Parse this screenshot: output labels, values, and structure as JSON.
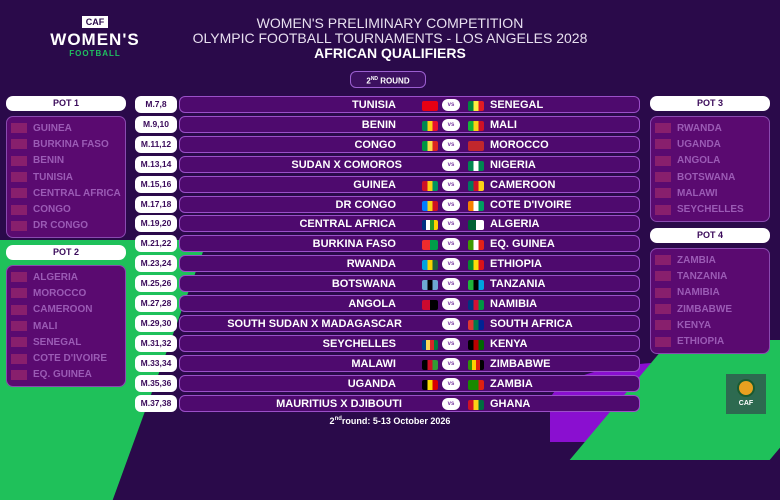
{
  "logo": {
    "caf": "CAF",
    "womens": "WOMEN'S",
    "football": "FOOTBALL"
  },
  "header": {
    "line1": "WOMEN'S PRELIMINARY COMPETITION",
    "line2": "OLYMPIC FOOTBALL TOURNAMENTS - LOS ANGELES 2028",
    "line3": "AFRICAN QUALIFIERS"
  },
  "round": {
    "num": "2",
    "sup": "ND",
    "label": "ROUND"
  },
  "pots": [
    {
      "title": "POT 1",
      "items": [
        "GUINEA",
        "BURKINA FASO",
        "BENIN",
        "TUNISIA",
        "CENTRAL AFRICA",
        "CONGO",
        "DR CONGO"
      ]
    },
    {
      "title": "POT 2",
      "items": [
        "ALGERIA",
        "MOROCCO",
        "CAMEROON",
        "MALI",
        "SENEGAL",
        "COTE D'IVOIRE",
        "EQ. GUINEA"
      ]
    },
    {
      "title": "POT 3",
      "items": [
        "RWANDA",
        "UGANDA",
        "ANGOLA",
        "BOTSWANA",
        "MALAWI",
        "SEYCHELLES"
      ]
    },
    {
      "title": "POT 4",
      "items": [
        "ZAMBIA",
        "TANZANIA",
        "NAMIBIA",
        "ZIMBABWE",
        "KENYA",
        "ETHIOPIA"
      ]
    }
  ],
  "vs_label": "vs",
  "matches": [
    {
      "m": "M.7,8",
      "home": "TUNISIA",
      "away": "SENEGAL",
      "hf": [
        "#e70013",
        "#e70013"
      ],
      "af": [
        "#00853f",
        "#fdef42",
        "#e31b23"
      ]
    },
    {
      "m": "M.9,10",
      "home": "BENIN",
      "away": "MALI",
      "hf": [
        "#008751",
        "#fcd116",
        "#e8112d"
      ],
      "af": [
        "#14b53a",
        "#fcd116",
        "#ce1126"
      ]
    },
    {
      "m": "M.11,12",
      "home": "CONGO",
      "away": "MOROCCO",
      "hf": [
        "#009543",
        "#fbde4a",
        "#dc241f"
      ],
      "af": [
        "#c1272d",
        "#c1272d"
      ]
    },
    {
      "m": "M.13,14",
      "home": "SUDAN X COMOROS",
      "away": "NIGERIA",
      "hf": [],
      "af": [
        "#008751",
        "#ffffff",
        "#008751"
      ]
    },
    {
      "m": "M.15,16",
      "home": "GUINEA",
      "away": "CAMEROON",
      "hf": [
        "#ce1126",
        "#fcd116",
        "#009460"
      ],
      "af": [
        "#007a5e",
        "#ce1126",
        "#fcd116"
      ]
    },
    {
      "m": "M.17,18",
      "home": "DR CONGO",
      "away": "COTE D'IVOIRE",
      "hf": [
        "#007fff",
        "#f7d618",
        "#ce1021"
      ],
      "af": [
        "#f77f00",
        "#ffffff",
        "#009e60"
      ]
    },
    {
      "m": "M.19,20",
      "home": "CENTRAL AFRICA",
      "away": "ALGERIA",
      "hf": [
        "#003082",
        "#ffffff",
        "#289728",
        "#ffce00"
      ],
      "af": [
        "#006233",
        "#ffffff"
      ]
    },
    {
      "m": "M.21,22",
      "home": "BURKINA FASO",
      "away": "EQ. GUINEA",
      "hf": [
        "#ef2b2d",
        "#009e49"
      ],
      "af": [
        "#3e9a00",
        "#ffffff",
        "#e32118"
      ]
    },
    {
      "m": "M.23,24",
      "home": "RWANDA",
      "away": "ETHIOPIA",
      "hf": [
        "#00a1de",
        "#fad201",
        "#20603d"
      ],
      "af": [
        "#078930",
        "#fcdd09",
        "#da121a"
      ]
    },
    {
      "m": "M.25,26",
      "home": "BOTSWANA",
      "away": "TANZANIA",
      "hf": [
        "#6da9d2",
        "#000000",
        "#6da9d2"
      ],
      "af": [
        "#1eb53a",
        "#000000",
        "#00a3dd"
      ]
    },
    {
      "m": "M.27,28",
      "home": "ANGOLA",
      "away": "NAMIBIA",
      "hf": [
        "#cc092f",
        "#000000"
      ],
      "af": [
        "#003580",
        "#d21034",
        "#009543"
      ]
    },
    {
      "m": "M.29,30",
      "home": "SOUTH SUDAN X MADAGASCAR",
      "away": "SOUTH AFRICA",
      "hf": [],
      "af": [
        "#de3831",
        "#007a4d",
        "#002395"
      ]
    },
    {
      "m": "M.31,32",
      "home": "SEYCHELLES",
      "away": "KENYA",
      "hf": [
        "#003f87",
        "#fcd856",
        "#d62828",
        "#007a3d"
      ],
      "af": [
        "#000000",
        "#bb0000",
        "#006600"
      ]
    },
    {
      "m": "M.33,34",
      "home": "MALAWI",
      "away": "ZIMBABWE",
      "hf": [
        "#000000",
        "#ce1126",
        "#339e35"
      ],
      "af": [
        "#319208",
        "#ffd200",
        "#de2010",
        "#000000"
      ]
    },
    {
      "m": "M.35,36",
      "home": "UGANDA",
      "away": "ZAMBIA",
      "hf": [
        "#000000",
        "#fcdc04",
        "#d90000"
      ],
      "af": [
        "#198a00",
        "#198a00",
        "#de2010"
      ]
    },
    {
      "m": "M.37,38",
      "home": "MAURITIUS X DJIBOUTI",
      "away": "GHANA",
      "hf": [],
      "af": [
        "#ce1126",
        "#fcd116",
        "#006b3f"
      ]
    }
  ],
  "footer": {
    "num": "2",
    "sup": "nd",
    "text": "round: 5-13 October 2026"
  },
  "badge": {
    "label": "CAF"
  }
}
